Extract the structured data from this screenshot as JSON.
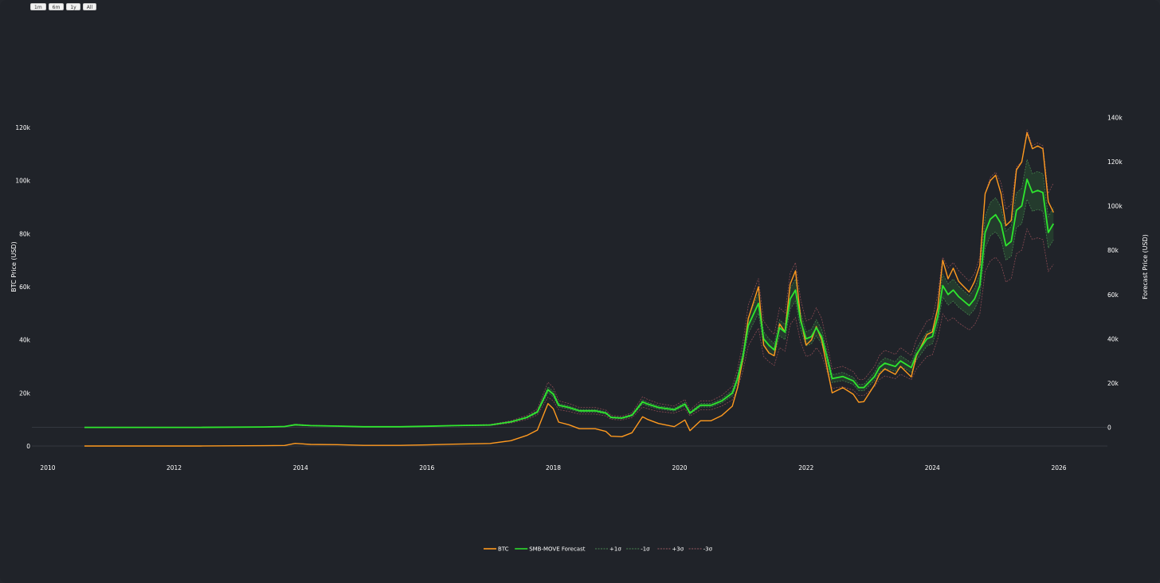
{
  "range_buttons": [
    "1m",
    "6m",
    "1y",
    "All"
  ],
  "chart_data": {
    "type": "line",
    "title": "",
    "xlabel": "",
    "ylabel": "BTC Price (USD)",
    "y2label": "Forecast Price (USD)",
    "xlim": [
      "2009-10-01",
      "2027-02-01"
    ],
    "ylim": [
      -3000,
      138000
    ],
    "y2lim": [
      -12000,
      157000
    ],
    "x_ticks": [
      "2010",
      "2012",
      "2014",
      "2016",
      "2018",
      "2020",
      "2022",
      "2024",
      "2026"
    ],
    "y_ticks": [
      "0",
      "20k",
      "40k",
      "60k",
      "80k",
      "100k",
      "120k"
    ],
    "y2_ticks": [
      "0",
      "20k",
      "40k",
      "60k",
      "80k",
      "100k",
      "120k",
      "140k"
    ],
    "legend_position": "bottom-center",
    "colors": {
      "btc": "#ff9a1f",
      "forecast": "#2ee62e",
      "band1": "#2e6b36",
      "band3": "#8a4a52"
    },
    "legend": [
      "BTC",
      "SMB-MOVE Forecast",
      "+1σ",
      "-1σ",
      "+3σ",
      "-3σ"
    ],
    "series": [
      {
        "name": "BTC",
        "axis": "y",
        "x": [
          "2010-08",
          "2011-06",
          "2012-06",
          "2013-06",
          "2013-10",
          "2013-12",
          "2014-03",
          "2014-08",
          "2015-01",
          "2015-08",
          "2016-01",
          "2016-06",
          "2017-01",
          "2017-05",
          "2017-08",
          "2017-10",
          "2017-12",
          "2018-01",
          "2018-02",
          "2018-04",
          "2018-06",
          "2018-09",
          "2018-11",
          "2018-12",
          "2019-02",
          "2019-04",
          "2019-06",
          "2019-07",
          "2019-09",
          "2019-12",
          "2020-02",
          "2020-03",
          "2020-05",
          "2020-07",
          "2020-09",
          "2020-11",
          "2020-12",
          "2021-01",
          "2021-02",
          "2021-04",
          "2021-05",
          "2021-06",
          "2021-07",
          "2021-08",
          "2021-09",
          "2021-10",
          "2021-11",
          "2021-12",
          "2022-01",
          "2022-02",
          "2022-03",
          "2022-04",
          "2022-05",
          "2022-06",
          "2022-08",
          "2022-10",
          "2022-11",
          "2022-12",
          "2023-02",
          "2023-03",
          "2023-04",
          "2023-06",
          "2023-07",
          "2023-09",
          "2023-10",
          "2023-12",
          "2024-01",
          "2024-02",
          "2024-03",
          "2024-04",
          "2024-05",
          "2024-06",
          "2024-08",
          "2024-09",
          "2024-10",
          "2024-11",
          "2024-12",
          "2025-01",
          "2025-02",
          "2025-03",
          "2025-04",
          "2025-05",
          "2025-06",
          "2025-07",
          "2025-08",
          "2025-09",
          "2025-10",
          "2025-11",
          "2025-12"
        ],
        "y": [
          0,
          2,
          5,
          120,
          200,
          1000,
          600,
          500,
          250,
          230,
          430,
          700,
          950,
          2000,
          4000,
          6000,
          16000,
          14000,
          9000,
          8000,
          6500,
          6500,
          5500,
          3700,
          3500,
          5000,
          11000,
          10000,
          8500,
          7300,
          9800,
          5800,
          9500,
          9500,
          11500,
          15000,
          22000,
          33000,
          48000,
          60000,
          38000,
          35000,
          34000,
          46000,
          43000,
          61000,
          66000,
          48000,
          38000,
          40000,
          45000,
          40000,
          30000,
          20000,
          22000,
          19500,
          16500,
          16700,
          23000,
          27000,
          29000,
          27000,
          30000,
          26000,
          34000,
          42000,
          43000,
          52000,
          70000,
          63000,
          67000,
          62000,
          58000,
          62000,
          68000,
          95000,
          100000,
          102000,
          95000,
          83000,
          85000,
          104000,
          107000,
          118000,
          112000,
          113000,
          112000,
          92000,
          88000
        ]
      },
      {
        "name": "SMB-MOVE Forecast",
        "axis": "y2",
        "x": [
          "2010-08",
          "2011-06",
          "2012-06",
          "2013-06",
          "2013-10",
          "2013-12",
          "2014-03",
          "2014-08",
          "2015-01",
          "2015-08",
          "2016-01",
          "2016-06",
          "2017-01",
          "2017-05",
          "2017-08",
          "2017-10",
          "2017-12",
          "2018-01",
          "2018-02",
          "2018-04",
          "2018-06",
          "2018-09",
          "2018-11",
          "2018-12",
          "2019-02",
          "2019-04",
          "2019-06",
          "2019-07",
          "2019-09",
          "2019-12",
          "2020-02",
          "2020-03",
          "2020-05",
          "2020-07",
          "2020-09",
          "2020-11",
          "2020-12",
          "2021-01",
          "2021-02",
          "2021-04",
          "2021-05",
          "2021-06",
          "2021-07",
          "2021-08",
          "2021-09",
          "2021-10",
          "2021-11",
          "2021-12",
          "2022-01",
          "2022-02",
          "2022-03",
          "2022-04",
          "2022-05",
          "2022-06",
          "2022-08",
          "2022-10",
          "2022-11",
          "2022-12",
          "2023-02",
          "2023-03",
          "2023-04",
          "2023-06",
          "2023-07",
          "2023-09",
          "2023-10",
          "2023-12",
          "2024-01",
          "2024-02",
          "2024-03",
          "2024-04",
          "2024-05",
          "2024-06",
          "2024-08",
          "2024-09",
          "2024-10",
          "2024-11",
          "2024-12",
          "2025-01",
          "2025-02",
          "2025-03",
          "2025-04",
          "2025-05",
          "2025-06",
          "2025-07",
          "2025-08",
          "2025-09",
          "2025-10",
          "2025-11",
          "2025-12"
        ],
        "y": [
          0,
          0,
          0,
          200,
          400,
          1200,
          800,
          600,
          300,
          300,
          500,
          800,
          1100,
          2500,
          4500,
          7000,
          17000,
          15000,
          10000,
          9000,
          7500,
          7500,
          6500,
          4500,
          4200,
          5500,
          11500,
          10500,
          9000,
          8000,
          10500,
          6500,
          10000,
          10000,
          12000,
          15500,
          22000,
          32000,
          46000,
          56000,
          40000,
          37000,
          35000,
          45000,
          43000,
          58000,
          62000,
          48000,
          40000,
          41000,
          45000,
          41000,
          32000,
          22000,
          23000,
          21000,
          18000,
          18000,
          23000,
          27000,
          29000,
          27500,
          30000,
          27000,
          33000,
          40000,
          41000,
          50000,
          64000,
          60000,
          62000,
          59000,
          55000,
          58000,
          64000,
          88000,
          94000,
          96000,
          92000,
          82000,
          84000,
          98000,
          100000,
          112000,
          106000,
          107000,
          106000,
          88000,
          92000
        ]
      }
    ]
  },
  "legend_items": [
    {
      "label": "BTC",
      "color": "#ff9a1f",
      "dash": "none"
    },
    {
      "label": "SMB-MOVE Forecast",
      "color": "#2ee62e",
      "dash": "none"
    },
    {
      "label": "+1σ",
      "color": "#4a8a52",
      "dash": "2,1.5"
    },
    {
      "label": "-1σ",
      "color": "#4a8a52",
      "dash": "2,1.5"
    },
    {
      "label": "+3σ",
      "color": "#9a5a62",
      "dash": "2,1.5"
    },
    {
      "label": "-3σ",
      "color": "#9a5a62",
      "dash": "2,1.5"
    }
  ]
}
